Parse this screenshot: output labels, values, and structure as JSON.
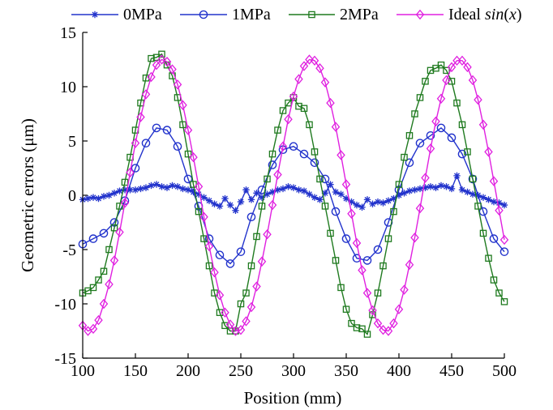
{
  "chart_data": {
    "type": "line",
    "xlabel": "Position (mm)",
    "ylabel": "Geometric errors (μm)",
    "xlim": [
      100,
      500
    ],
    "ylim": [
      -15,
      15
    ],
    "xticks": [
      100,
      150,
      200,
      250,
      300,
      350,
      400,
      450,
      500
    ],
    "yticks": [
      15,
      10,
      5,
      0,
      -5,
      -10,
      -15
    ],
    "grid": false,
    "legend_position": "top",
    "series": [
      {
        "name": "0MPa",
        "marker": "asterisk",
        "color": "#2233cc",
        "x": [
          100,
          105,
          110,
          115,
          120,
          125,
          130,
          135,
          140,
          145,
          150,
          155,
          160,
          165,
          170,
          175,
          180,
          185,
          190,
          195,
          200,
          205,
          210,
          215,
          220,
          225,
          230,
          235,
          240,
          245,
          250,
          255,
          260,
          265,
          270,
          275,
          280,
          285,
          290,
          295,
          300,
          305,
          310,
          315,
          320,
          325,
          330,
          335,
          340,
          345,
          350,
          355,
          360,
          365,
          370,
          375,
          380,
          385,
          390,
          395,
          400,
          405,
          410,
          415,
          420,
          425,
          430,
          435,
          440,
          445,
          450,
          455,
          460,
          465,
          470,
          475,
          480,
          485,
          490,
          495,
          500
        ],
        "y": [
          -0.4,
          -0.3,
          -0.2,
          -0.3,
          -0.1,
          0.0,
          0.2,
          0.4,
          0.5,
          0.5,
          0.5,
          0.6,
          0.7,
          0.9,
          1.0,
          0.8,
          0.7,
          0.9,
          0.8,
          0.6,
          0.5,
          0.3,
          0.1,
          -0.2,
          -0.5,
          -0.8,
          -1.0,
          -0.3,
          -0.9,
          -1.4,
          -0.6,
          0.5,
          -0.4,
          0.2,
          -0.2,
          0.1,
          0.3,
          0.5,
          0.6,
          0.8,
          0.7,
          0.5,
          0.4,
          0.1,
          -0.2,
          -0.4,
          0.2,
          1.0,
          0.3,
          0.1,
          -0.3,
          -0.6,
          -0.9,
          -1.1,
          -0.4,
          -0.8,
          -0.6,
          -0.7,
          -0.5,
          -0.3,
          0.0,
          0.2,
          0.4,
          0.5,
          0.6,
          0.7,
          0.8,
          0.7,
          0.9,
          0.8,
          0.6,
          1.8,
          0.5,
          0.3,
          0.1,
          0.0,
          -0.2,
          -0.4,
          -0.6,
          -0.7,
          -0.9
        ]
      },
      {
        "name": "1MPa",
        "marker": "circle",
        "color": "#2233cc",
        "x": [
          100,
          110,
          120,
          130,
          140,
          150,
          160,
          170,
          180,
          190,
          200,
          210,
          220,
          230,
          240,
          250,
          260,
          270,
          280,
          290,
          300,
          310,
          320,
          330,
          340,
          350,
          360,
          370,
          380,
          390,
          400,
          410,
          420,
          430,
          440,
          450,
          460,
          470,
          480,
          490,
          500
        ],
        "y": [
          -4.5,
          -4.0,
          -3.5,
          -2.5,
          -0.5,
          2.5,
          4.8,
          6.2,
          6.0,
          4.5,
          1.5,
          -1.0,
          -4.0,
          -5.5,
          -6.3,
          -5.2,
          -2.0,
          0.5,
          2.8,
          4.2,
          4.5,
          3.8,
          3.0,
          1.5,
          -1.5,
          -4.0,
          -5.8,
          -6.0,
          -5.0,
          -2.5,
          0.5,
          3.0,
          4.8,
          5.5,
          6.2,
          5.3,
          3.8,
          1.5,
          -1.5,
          -4.0,
          -5.2
        ]
      },
      {
        "name": "2MPa",
        "marker": "square",
        "color": "#1f7a1f",
        "x": [
          100,
          105,
          110,
          115,
          120,
          125,
          130,
          135,
          140,
          145,
          150,
          155,
          160,
          165,
          170,
          175,
          180,
          185,
          190,
          195,
          200,
          205,
          210,
          215,
          220,
          225,
          230,
          235,
          240,
          245,
          250,
          255,
          260,
          265,
          270,
          275,
          280,
          285,
          290,
          295,
          300,
          305,
          310,
          315,
          320,
          325,
          330,
          335,
          340,
          345,
          350,
          355,
          360,
          365,
          370,
          375,
          380,
          385,
          390,
          395,
          400,
          405,
          410,
          415,
          420,
          425,
          430,
          435,
          440,
          445,
          450,
          455,
          460,
          465,
          470,
          475,
          480,
          485,
          490,
          495,
          500
        ],
        "y": [
          -9.0,
          -8.8,
          -8.5,
          -7.8,
          -7.0,
          -5.0,
          -3.0,
          -1.0,
          1.2,
          3.5,
          6.0,
          8.5,
          10.8,
          12.6,
          12.7,
          13.0,
          12.0,
          11.0,
          9.0,
          6.5,
          3.8,
          1.0,
          -1.5,
          -4.0,
          -6.5,
          -9.0,
          -10.8,
          -12.0,
          -12.5,
          -12.5,
          -10.0,
          -9.0,
          -6.5,
          -3.8,
          -1.0,
          1.5,
          3.8,
          6.0,
          7.8,
          8.5,
          9.0,
          8.2,
          8.0,
          6.5,
          4.0,
          1.5,
          -1.0,
          -3.5,
          -6.0,
          -8.5,
          -10.5,
          -11.8,
          -12.2,
          -12.3,
          -12.8,
          -11.0,
          -9.0,
          -6.5,
          -4.0,
          -1.5,
          1.0,
          3.5,
          5.5,
          7.5,
          9.0,
          10.5,
          11.5,
          11.7,
          12.0,
          11.5,
          10.5,
          8.5,
          6.5,
          4.0,
          1.5,
          -1.0,
          -3.5,
          -5.8,
          -7.8,
          -9.0,
          -9.8
        ]
      },
      {
        "name": "Ideal sin(x)",
        "marker": "diamond",
        "color": "#e020e0",
        "x": [
          100,
          105,
          110,
          115,
          120,
          125,
          130,
          135,
          140,
          145,
          150,
          155,
          160,
          165,
          170,
          175,
          180,
          185,
          190,
          195,
          200,
          205,
          210,
          215,
          220,
          225,
          230,
          235,
          240,
          245,
          250,
          255,
          260,
          265,
          270,
          275,
          280,
          285,
          290,
          295,
          300,
          305,
          310,
          315,
          320,
          325,
          330,
          335,
          340,
          345,
          350,
          355,
          360,
          365,
          370,
          375,
          380,
          385,
          390,
          395,
          400,
          405,
          410,
          415,
          420,
          425,
          430,
          435,
          440,
          445,
          450,
          455,
          460,
          465,
          470,
          475,
          480,
          485,
          490,
          495,
          500
        ],
        "y": [
          -12.0,
          -12.5,
          -12.3,
          -11.5,
          -10.0,
          -8.2,
          -6.0,
          -3.4,
          -0.7,
          2.1,
          4.8,
          7.2,
          9.3,
          10.9,
          12.0,
          12.5,
          12.3,
          11.6,
          10.2,
          8.3,
          6.0,
          3.5,
          0.8,
          -2.0,
          -4.7,
          -7.1,
          -9.2,
          -10.8,
          -11.9,
          -12.5,
          -12.4,
          -11.6,
          -10.3,
          -8.4,
          -6.1,
          -3.6,
          -0.9,
          1.9,
          4.5,
          7.0,
          9.1,
          10.7,
          11.9,
          12.5,
          12.4,
          11.7,
          10.4,
          8.5,
          6.3,
          3.7,
          1.0,
          -1.7,
          -4.4,
          -6.9,
          -9.0,
          -10.6,
          -11.8,
          -12.4,
          -12.5,
          -11.8,
          -10.5,
          -8.7,
          -6.4,
          -3.9,
          -1.2,
          1.6,
          4.3,
          6.8,
          8.9,
          10.6,
          11.8,
          12.4,
          12.4,
          11.8,
          10.6,
          8.8,
          6.5,
          4.0,
          1.3,
          -1.4,
          -4.1
        ]
      }
    ]
  },
  "legend_labels": {
    "s0": "0MPa",
    "s1": "1MPa",
    "s2": "2MPa",
    "s3_prefix": "Ideal ",
    "s3_italic": "sin",
    "s3_paren_open": "(",
    "s3_var": "x",
    "s3_paren_close": ")"
  }
}
